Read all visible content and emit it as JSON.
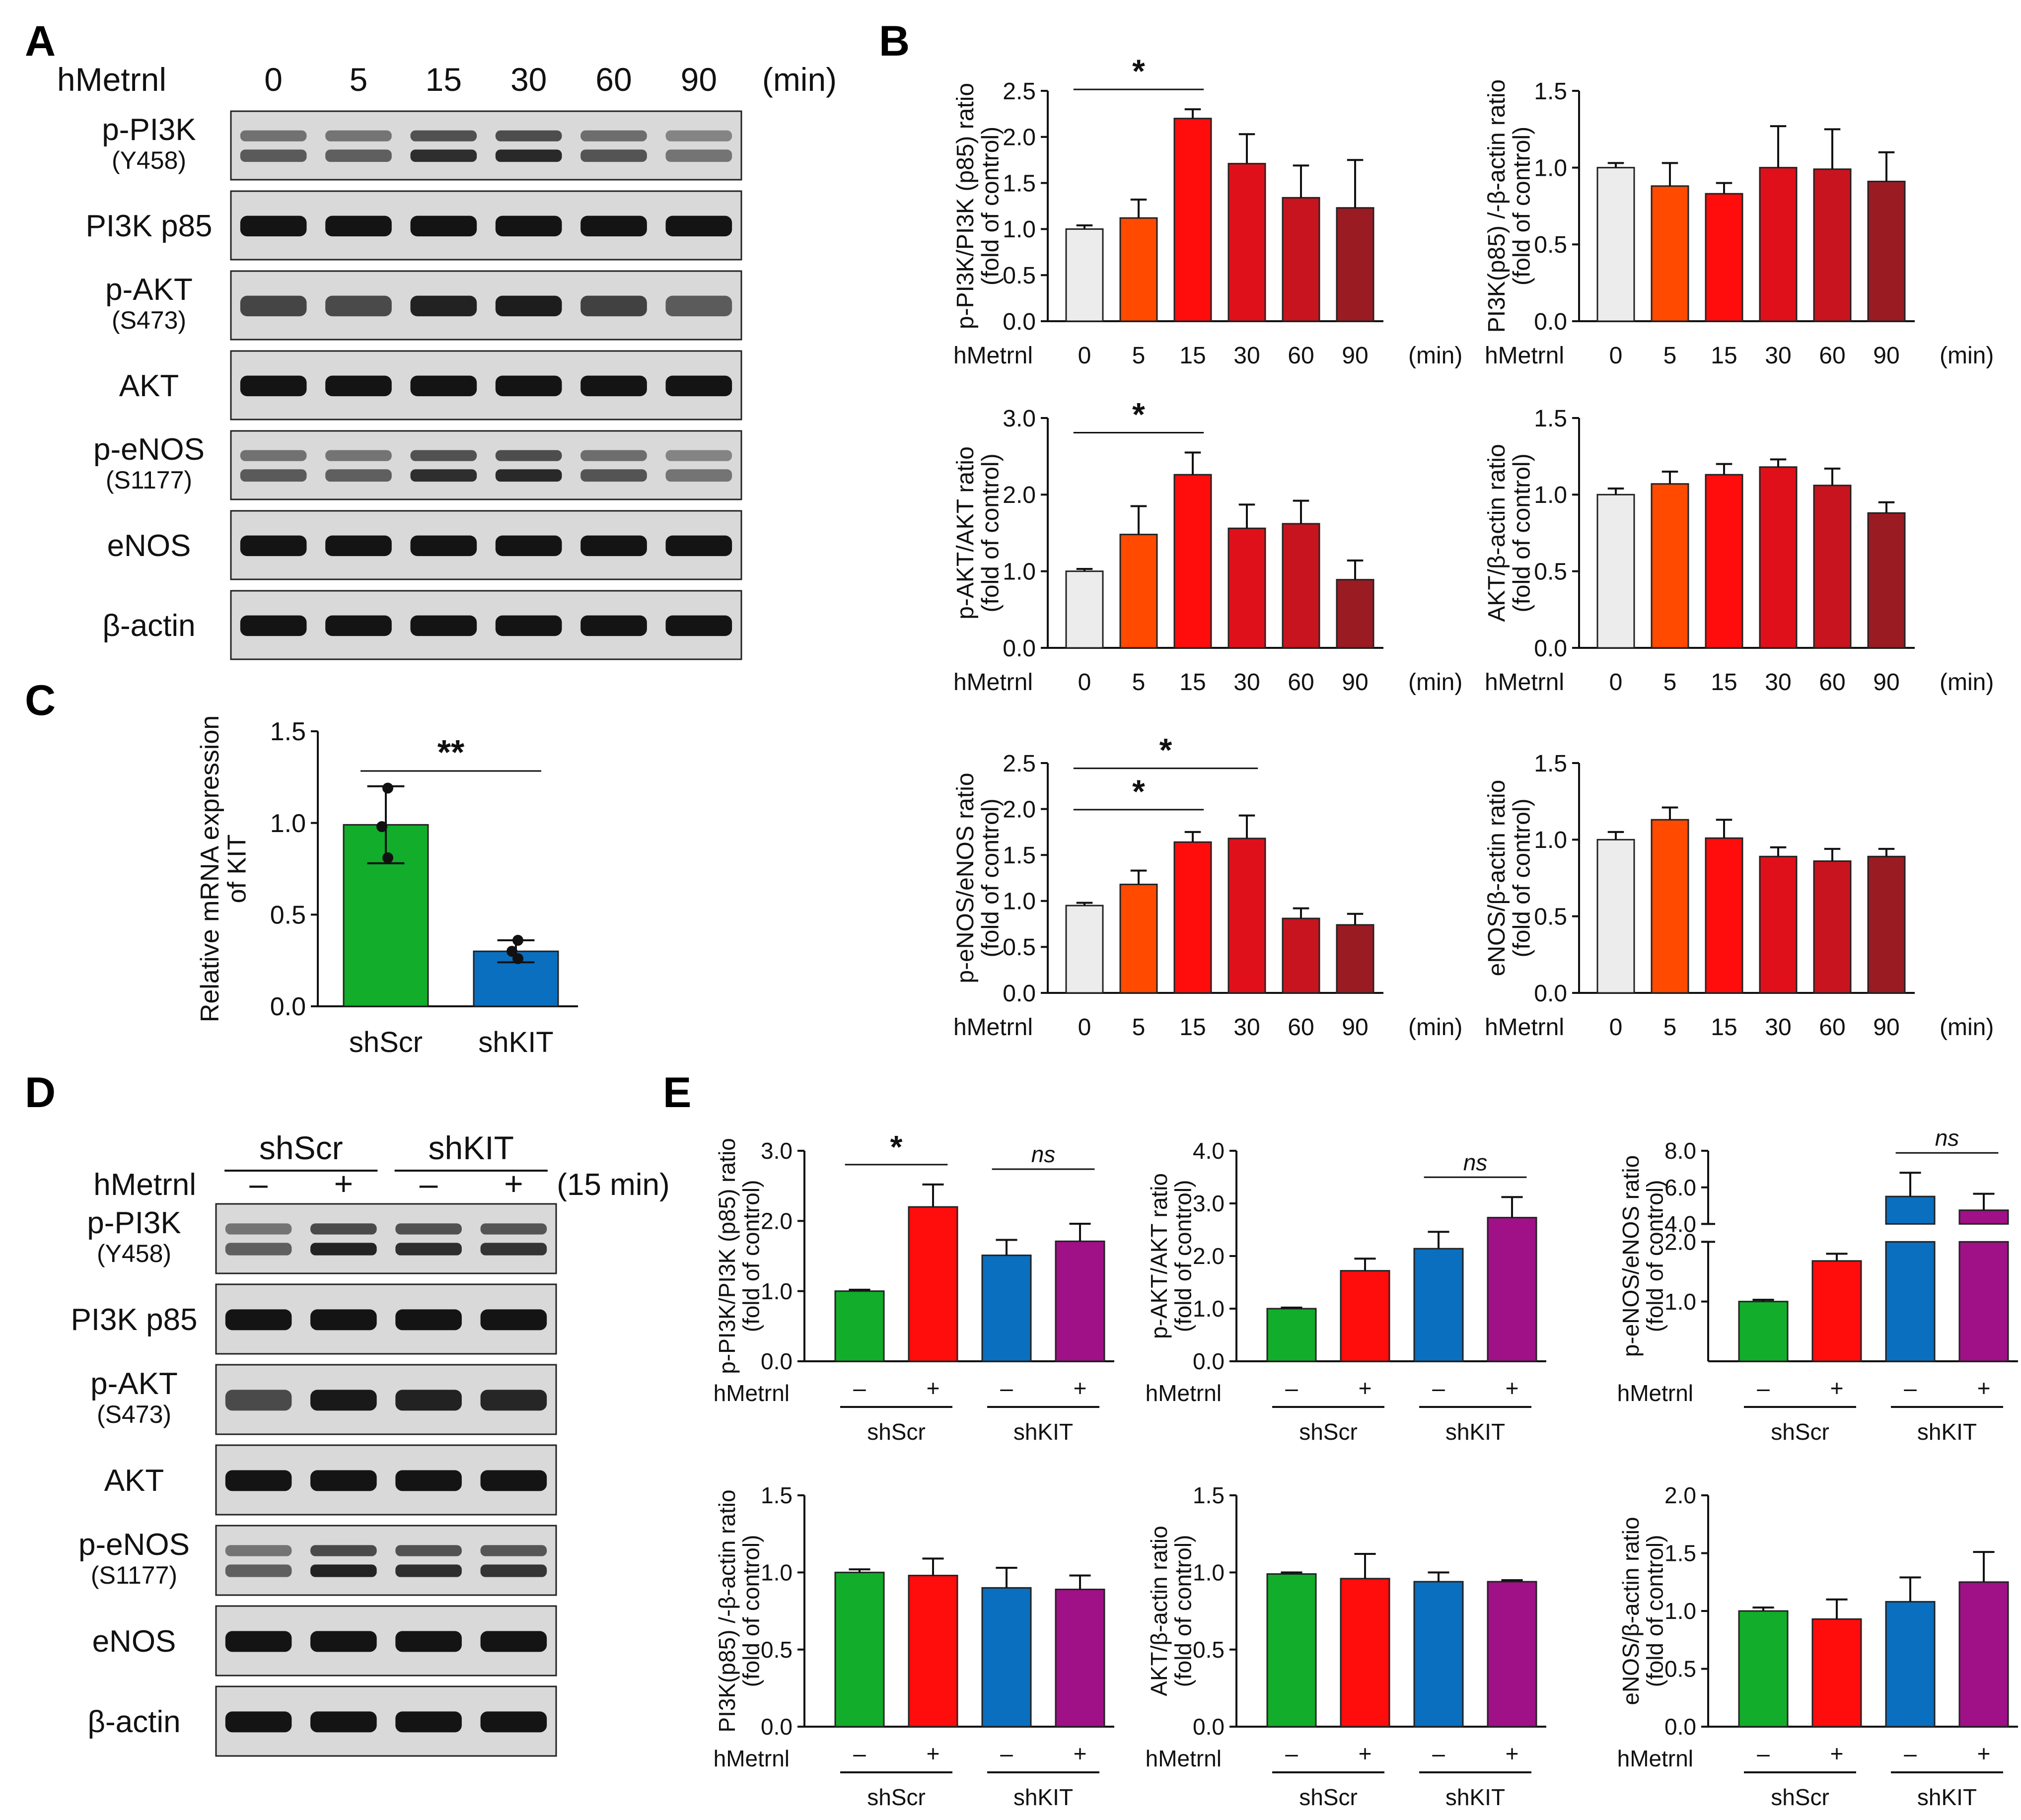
{
  "colors": {
    "axis": "#111111",
    "control": "#ececec",
    "t5": "#ff4a00",
    "t15": "#ff0d0d",
    "t30": "#e0101a",
    "t60": "#c8141e",
    "t90": "#9a1b22",
    "shscr_minus": "#12ad2b",
    "shscr_plus": "#ff0c0c",
    "shkit_minus": "#0a6fbf",
    "shkit_plus": "#a01087",
    "blot_bg": "#d9d9d9",
    "band": "#141414"
  },
  "panel_letters": {
    "a": "A",
    "b": "B",
    "c": "C",
    "d": "D",
    "e": "E"
  },
  "panel_a": {
    "treatment_label": "hMetrnl",
    "time_points": [
      "0",
      "5",
      "15",
      "30",
      "60",
      "90"
    ],
    "unit": "(min)",
    "blots": [
      {
        "label": "p-PI3K",
        "site": "(Y458)",
        "name": "blot-p-pi3k"
      },
      {
        "label": "PI3K p85",
        "site": "",
        "name": "blot-pi3k-p85"
      },
      {
        "label": "p-AKT",
        "site": "(S473)",
        "name": "blot-p-akt"
      },
      {
        "label": "AKT",
        "site": "",
        "name": "blot-akt"
      },
      {
        "label": "p-eNOS",
        "site": "(S1177)",
        "name": "blot-p-enos"
      },
      {
        "label": "eNOS",
        "site": "",
        "name": "blot-enos"
      },
      {
        "label": "β-actin",
        "site": "",
        "name": "blot-beta-actin"
      }
    ]
  },
  "panel_d": {
    "treatment_label": "hMetrnl",
    "groups": [
      "shScr",
      "shKIT"
    ],
    "signs": [
      "–",
      "+",
      "–",
      "+"
    ],
    "time_label": "(15 min)",
    "blots": [
      {
        "label": "p-PI3K",
        "site": "(Y458)",
        "name": "blot-p-pi3k"
      },
      {
        "label": "PI3K p85",
        "site": "",
        "name": "blot-pi3k-p85"
      },
      {
        "label": "p-AKT",
        "site": "(S473)",
        "name": "blot-p-akt"
      },
      {
        "label": "AKT",
        "site": "",
        "name": "blot-akt"
      },
      {
        "label": "p-eNOS",
        "site": "(S1177)",
        "name": "blot-p-enos"
      },
      {
        "label": "eNOS",
        "site": "",
        "name": "blot-enos"
      },
      {
        "label": "β-actin",
        "site": "",
        "name": "blot-beta-actin"
      }
    ]
  },
  "chart_data": [
    {
      "id": "B1",
      "type": "bar",
      "panel": "B",
      "ylabel": [
        "p-PI3K/PI3K (p85) ratio",
        "(fold of control)"
      ],
      "ylim": [
        0,
        2.5
      ],
      "ticks": [
        0.0,
        0.5,
        1.0,
        1.5,
        2.0,
        2.5
      ],
      "treatment_label": "hMetrnl",
      "categories": [
        "0",
        "5",
        "15",
        "30",
        "60",
        "90"
      ],
      "unit": "(min)",
      "values": [
        1.0,
        1.12,
        2.2,
        1.71,
        1.34,
        1.23
      ],
      "errors": [
        0.04,
        0.2,
        0.1,
        0.32,
        0.35,
        0.52
      ],
      "sig": [
        {
          "from": 0,
          "to": 2,
          "label": "*"
        }
      ]
    },
    {
      "id": "B2",
      "type": "bar",
      "panel": "B",
      "ylabel": [
        "PI3K(p85) /-β-actin ratio",
        "(fold of control)"
      ],
      "ylim": [
        0,
        1.5
      ],
      "ticks": [
        0.0,
        0.5,
        1.0,
        1.5
      ],
      "treatment_label": "hMetrnl",
      "categories": [
        "0",
        "5",
        "15",
        "30",
        "60",
        "90"
      ],
      "unit": "(min)",
      "values": [
        1.0,
        0.88,
        0.83,
        1.0,
        0.99,
        0.91
      ],
      "errors": [
        0.03,
        0.15,
        0.07,
        0.27,
        0.26,
        0.19
      ],
      "sig": []
    },
    {
      "id": "B3",
      "type": "bar",
      "panel": "B",
      "ylabel": [
        "p-AKT/AKT ratio",
        "(fold of control)"
      ],
      "ylim": [
        0,
        3.0
      ],
      "ticks": [
        0.0,
        1.0,
        2.0,
        3.0
      ],
      "treatment_label": "hMetrnl",
      "categories": [
        "0",
        "5",
        "15",
        "30",
        "60",
        "90"
      ],
      "unit": "(min)",
      "values": [
        1.0,
        1.48,
        2.26,
        1.56,
        1.62,
        0.89
      ],
      "errors": [
        0.03,
        0.37,
        0.29,
        0.31,
        0.3,
        0.25
      ],
      "sig": [
        {
          "from": 0,
          "to": 2,
          "label": "*"
        }
      ]
    },
    {
      "id": "B4",
      "type": "bar",
      "panel": "B",
      "ylabel": [
        "AKT/β-actin ratio",
        "(fold of control)"
      ],
      "ylim": [
        0,
        1.5
      ],
      "ticks": [
        0.0,
        0.5,
        1.0,
        1.5
      ],
      "treatment_label": "hMetrnl",
      "categories": [
        "0",
        "5",
        "15",
        "30",
        "60",
        "90"
      ],
      "unit": "(min)",
      "values": [
        1.0,
        1.07,
        1.13,
        1.18,
        1.06,
        0.88
      ],
      "errors": [
        0.04,
        0.08,
        0.07,
        0.05,
        0.11,
        0.07
      ],
      "sig": []
    },
    {
      "id": "B5",
      "type": "bar",
      "panel": "B",
      "ylabel": [
        "p-eNOS/eNOS ratio",
        "(fold of control)"
      ],
      "ylim": [
        0,
        2.5
      ],
      "ticks": [
        0.0,
        0.5,
        1.0,
        1.5,
        2.0,
        2.5
      ],
      "treatment_label": "hMetrnl",
      "categories": [
        "0",
        "5",
        "15",
        "30",
        "60",
        "90"
      ],
      "unit": "(min)",
      "values": [
        0.95,
        1.18,
        1.64,
        1.68,
        0.81,
        0.74
      ],
      "errors": [
        0.03,
        0.15,
        0.11,
        0.25,
        0.11,
        0.12
      ],
      "sig": [
        {
          "from": 0,
          "to": 2,
          "label": "*"
        },
        {
          "from": 0,
          "to": 3,
          "label": "*"
        }
      ]
    },
    {
      "id": "B6",
      "type": "bar",
      "panel": "B",
      "ylabel": [
        "eNOS/β-actin ratio",
        "(fold of control)"
      ],
      "ylim": [
        0,
        1.5
      ],
      "ticks": [
        0.0,
        0.5,
        1.0,
        1.5
      ],
      "treatment_label": "hMetrnl",
      "categories": [
        "0",
        "5",
        "15",
        "30",
        "60",
        "90"
      ],
      "unit": "(min)",
      "values": [
        1.0,
        1.13,
        1.01,
        0.89,
        0.86,
        0.89
      ],
      "errors": [
        0.05,
        0.08,
        0.12,
        0.06,
        0.08,
        0.05
      ],
      "sig": []
    },
    {
      "id": "C",
      "type": "bar",
      "panel": "C",
      "ylabel": [
        "Relative mRNA expression",
        "of KIT"
      ],
      "ylim": [
        0,
        1.5
      ],
      "ticks": [
        0.0,
        0.5,
        1.0,
        1.5
      ],
      "categories": [
        "shScr",
        "shKIT"
      ],
      "values": [
        0.99,
        0.3
      ],
      "errors": [
        0.21,
        0.06
      ],
      "points": [
        [
          1.19,
          0.98,
          0.81
        ],
        [
          0.36,
          0.3,
          0.26
        ]
      ],
      "sig": [
        {
          "from": 0,
          "to": 1,
          "label": "**"
        }
      ]
    },
    {
      "id": "E1",
      "type": "bar",
      "panel": "E",
      "ylabel": [
        "p-PI3K/PI3K (p85) ratio",
        "(fold of control)"
      ],
      "ylim": [
        0,
        3.0
      ],
      "ticks": [
        0.0,
        1.0,
        2.0,
        3.0
      ],
      "treatment_label": "hMetrnl",
      "signs": [
        "–",
        "+",
        "–",
        "+"
      ],
      "groups": [
        "shScr",
        "shKIT"
      ],
      "values": [
        1.0,
        2.2,
        1.51,
        1.71
      ],
      "errors": [
        0.02,
        0.32,
        0.22,
        0.25
      ],
      "sig": [
        {
          "from": 0,
          "to": 1,
          "label": "*"
        },
        {
          "from": 2,
          "to": 3,
          "label": "ns"
        }
      ]
    },
    {
      "id": "E2",
      "type": "bar",
      "panel": "E",
      "ylabel": [
        "p-AKT/AKT ratio",
        "(fold of control)"
      ],
      "ylim": [
        0,
        4.0
      ],
      "ticks": [
        0.0,
        1.0,
        2.0,
        3.0,
        4.0
      ],
      "treatment_label": "hMetrnl",
      "signs": [
        "–",
        "+",
        "–",
        "+"
      ],
      "groups": [
        "shScr",
        "shKIT"
      ],
      "values": [
        1.0,
        1.72,
        2.14,
        2.73
      ],
      "errors": [
        0.02,
        0.23,
        0.32,
        0.39
      ],
      "sig": [
        {
          "from": 2,
          "to": 3,
          "label": "ns"
        }
      ]
    },
    {
      "id": "E3",
      "type": "bar",
      "panel": "E",
      "ylabel": [
        "p-eNOS/eNOS ratio",
        "(fold of control)"
      ],
      "axis_break": true,
      "ylim_lower": [
        0,
        2.0
      ],
      "ticks_lower": [
        1.0,
        2.0
      ],
      "ylim_upper": [
        4.0,
        8.0
      ],
      "ticks_upper": [
        4.0,
        6.0,
        8.0
      ],
      "treatment_label": "hMetrnl",
      "signs": [
        "–",
        "+",
        "–",
        "+"
      ],
      "groups": [
        "shScr",
        "shKIT"
      ],
      "values": [
        1.0,
        1.68,
        5.5,
        4.75
      ],
      "errors": [
        0.03,
        0.12,
        1.3,
        0.9
      ],
      "sig": [
        {
          "from": 2,
          "to": 3,
          "label": "ns"
        }
      ]
    },
    {
      "id": "E4",
      "type": "bar",
      "panel": "E",
      "ylabel": [
        "PI3K(p85) /-β-actin ratio",
        "(fold of control)"
      ],
      "ylim": [
        0,
        1.5
      ],
      "ticks": [
        0.0,
        0.5,
        1.0,
        1.5
      ],
      "treatment_label": "hMetrnl",
      "signs": [
        "–",
        "+",
        "–",
        "+"
      ],
      "groups": [
        "shScr",
        "shKIT"
      ],
      "values": [
        1.0,
        0.98,
        0.9,
        0.89
      ],
      "errors": [
        0.02,
        0.11,
        0.13,
        0.09
      ],
      "sig": []
    },
    {
      "id": "E5",
      "type": "bar",
      "panel": "E",
      "ylabel": [
        "AKT/β-actin ratio",
        "(fold of control)"
      ],
      "ylim": [
        0,
        1.5
      ],
      "ticks": [
        0.0,
        0.5,
        1.0,
        1.5
      ],
      "treatment_label": "hMetrnl",
      "signs": [
        "–",
        "+",
        "–",
        "+"
      ],
      "groups": [
        "shScr",
        "shKIT"
      ],
      "values": [
        0.99,
        0.96,
        0.94,
        0.94
      ],
      "errors": [
        0.01,
        0.16,
        0.06,
        0.01
      ],
      "sig": []
    },
    {
      "id": "E6",
      "type": "bar",
      "panel": "E",
      "ylabel": [
        "eNOS/β-actin ratio",
        "(fold of control)"
      ],
      "ylim": [
        0,
        2.0
      ],
      "ticks": [
        0.0,
        0.5,
        1.0,
        1.5,
        2.0
      ],
      "treatment_label": "hMetrnl",
      "signs": [
        "–",
        "+",
        "–",
        "+"
      ],
      "groups": [
        "shScr",
        "shKIT"
      ],
      "values": [
        1.0,
        0.93,
        1.08,
        1.25
      ],
      "errors": [
        0.03,
        0.17,
        0.21,
        0.26
      ],
      "sig": []
    }
  ]
}
